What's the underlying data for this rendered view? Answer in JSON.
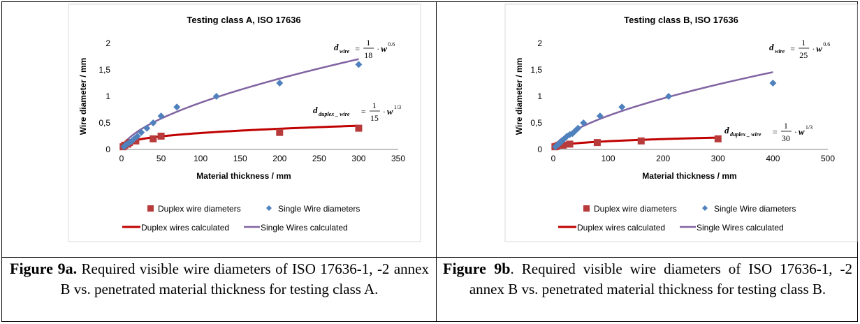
{
  "colors": {
    "duplex": "#b83a3a",
    "duplex_line": "#c00000",
    "single": "#4f81bd",
    "single_line": "#8064a2"
  },
  "chart_data": [
    {
      "type": "scatter",
      "title": "Testing class A, ISO 17636",
      "xlabel": "Material thickness / mm",
      "ylabel": "Wire diameter / mm",
      "xlim": [
        0,
        350
      ],
      "ylim": [
        0,
        2
      ],
      "xticks": [
        "0",
        "50",
        "100",
        "150",
        "200",
        "250",
        "300",
        "350"
      ],
      "yticks": [
        "0",
        "0,5",
        "1",
        "1,5",
        "2"
      ],
      "grid": "none",
      "legend": "bottom",
      "series": [
        {
          "name": "Duplex wire diameters",
          "marker": "square",
          "x": [
            2,
            4,
            8,
            10,
            18,
            40,
            50,
            200,
            300
          ],
          "y": [
            0.05,
            0.08,
            0.1,
            0.13,
            0.16,
            0.2,
            0.25,
            0.32,
            0.4
          ]
        },
        {
          "name": "Single Wire diameters",
          "marker": "diamond",
          "x": [
            3,
            5,
            7,
            10,
            13,
            16,
            20,
            25,
            32,
            40,
            50,
            70,
            120,
            200,
            300
          ],
          "y": [
            0.05,
            0.08,
            0.1,
            0.13,
            0.16,
            0.2,
            0.25,
            0.32,
            0.4,
            0.5,
            0.63,
            0.8,
            1.0,
            1.25,
            1.6
          ]
        },
        {
          "name": "Duplex wires calculated",
          "kind": "line",
          "a": 15,
          "p": 0.3333,
          "x_start": 2,
          "x_end": 300
        },
        {
          "name": "Single Wires calculated",
          "kind": "line",
          "a": 18,
          "p": 0.6,
          "x_start": 2,
          "x_end": 300
        }
      ],
      "annotations": [
        {
          "id": "single",
          "lhs": "d",
          "sub": "wire",
          "den": "18",
          "exp": "0.6"
        },
        {
          "id": "duplex",
          "lhs": "d",
          "sub": "duplex _ wire",
          "den": "15",
          "exp": "1/3"
        }
      ]
    },
    {
      "type": "scatter",
      "title": "Testing class B, ISO 17636",
      "xlabel": "Material thickness / mm",
      "ylabel": "Wire diameter / mm",
      "xlim": [
        0,
        500
      ],
      "ylim": [
        0,
        2
      ],
      "xticks": [
        "0",
        "100",
        "200",
        "300",
        "400",
        "500"
      ],
      "yticks": [
        "0",
        "0,5",
        "1",
        "1,5",
        "2"
      ],
      "grid": "none",
      "legend": "bottom",
      "series": [
        {
          "name": "Duplex wire diameters",
          "marker": "square",
          "x": [
            3,
            6,
            10,
            18,
            30,
            80,
            160,
            300
          ],
          "y": [
            0.05,
            0.06,
            0.08,
            0.08,
            0.1,
            0.13,
            0.16,
            0.2
          ]
        },
        {
          "name": "Single Wire diameters",
          "marker": "diamond",
          "x": [
            4,
            7,
            10,
            13,
            16,
            20,
            25,
            30,
            35,
            40,
            45,
            55,
            85,
            125,
            210,
            400
          ],
          "y": [
            0.05,
            0.08,
            0.1,
            0.13,
            0.16,
            0.2,
            0.25,
            0.28,
            0.3,
            0.35,
            0.4,
            0.5,
            0.63,
            0.8,
            1.0,
            1.25
          ]
        },
        {
          "name": "Duplex wires calculated",
          "kind": "line",
          "a": 30,
          "p": 0.3333,
          "x_start": 2,
          "x_end": 300
        },
        {
          "name": "Single Wires calculated",
          "kind": "line",
          "a": 25,
          "p": 0.6,
          "x_start": 2,
          "x_end": 400
        }
      ],
      "annotations": [
        {
          "id": "single",
          "lhs": "d",
          "sub": "wire",
          "den": "25",
          "exp": "0.6"
        },
        {
          "id": "duplex",
          "lhs": "d",
          "sub": "duplex _ wire",
          "den": "30",
          "exp": "1/3"
        }
      ]
    }
  ],
  "formula_common": {
    "eq": "=",
    "num": "1",
    "dot": "·",
    "w": "w"
  },
  "captions": [
    {
      "label": "Figure 9a.",
      "text": "Required visible wire diameters of ISO 17636-1, -2 annex B  vs. penetrated material thickness for testing class A."
    },
    {
      "label": "Figure 9b",
      "text": ". Required visible wire diameters of ISO 17636-1, -2 annex B  vs. penetrated material thickness for testing class B."
    }
  ]
}
